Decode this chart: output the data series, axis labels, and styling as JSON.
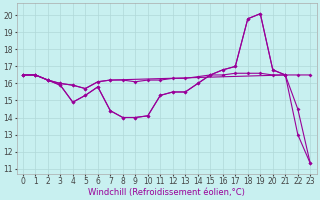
{
  "xlabel": "Windchill (Refroidissement éolien,°C)",
  "background_color": "#c8f0f0",
  "line_color": "#990099",
  "xlim": [
    -0.5,
    23.5
  ],
  "ylim": [
    10.7,
    20.7
  ],
  "yticks": [
    11,
    12,
    13,
    14,
    15,
    16,
    17,
    18,
    19,
    20
  ],
  "xticks": [
    0,
    1,
    2,
    3,
    4,
    5,
    6,
    7,
    8,
    9,
    10,
    11,
    12,
    13,
    14,
    15,
    16,
    17,
    18,
    19,
    20,
    21,
    22,
    23
  ],
  "series1_x": [
    0,
    1,
    2,
    3,
    4,
    5,
    6,
    7,
    8,
    9,
    10,
    11,
    12,
    13,
    14,
    15,
    16,
    17,
    18,
    19,
    20,
    21,
    22,
    23
  ],
  "series1_y": [
    16.5,
    16.5,
    16.2,
    16.0,
    15.9,
    15.7,
    16.1,
    16.2,
    16.2,
    16.1,
    16.2,
    16.2,
    16.3,
    16.3,
    16.4,
    16.5,
    16.5,
    16.6,
    16.6,
    16.6,
    16.5,
    16.5,
    16.5,
    16.5
  ],
  "series2_x": [
    0,
    1,
    2,
    3,
    4,
    5,
    6,
    7,
    8,
    9,
    10,
    11,
    12,
    13,
    14,
    15,
    16,
    17,
    18,
    19,
    20,
    21,
    22,
    23
  ],
  "series2_y": [
    16.5,
    16.5,
    16.2,
    15.9,
    14.9,
    15.3,
    15.8,
    14.4,
    14.0,
    14.0,
    14.1,
    15.3,
    15.5,
    15.5,
    16.0,
    16.5,
    16.8,
    17.0,
    19.8,
    20.1,
    16.8,
    16.5,
    13.0,
    11.3
  ],
  "series3_x": [
    0,
    1,
    2,
    3,
    4,
    5,
    6,
    7,
    8,
    9,
    10,
    11,
    12,
    13,
    14,
    15,
    16,
    17,
    18,
    19,
    20,
    21
  ],
  "series3_y": [
    16.5,
    16.5,
    16.2,
    15.9,
    14.9,
    15.3,
    15.8,
    14.4,
    14.0,
    14.0,
    14.1,
    15.3,
    15.5,
    15.5,
    16.0,
    16.5,
    16.8,
    17.0,
    19.8,
    20.1,
    16.8,
    16.5
  ],
  "series4_x": [
    0,
    1,
    2,
    3,
    4,
    5,
    6,
    7,
    21,
    22,
    23
  ],
  "series4_y": [
    16.5,
    16.5,
    16.2,
    16.0,
    15.9,
    15.7,
    16.1,
    16.2,
    16.5,
    14.5,
    11.3
  ],
  "tick_fontsize": 5.5,
  "label_fontsize": 6.0,
  "grid_color": "#b0d8d8",
  "marker_size": 2.0,
  "linewidth": 0.8
}
